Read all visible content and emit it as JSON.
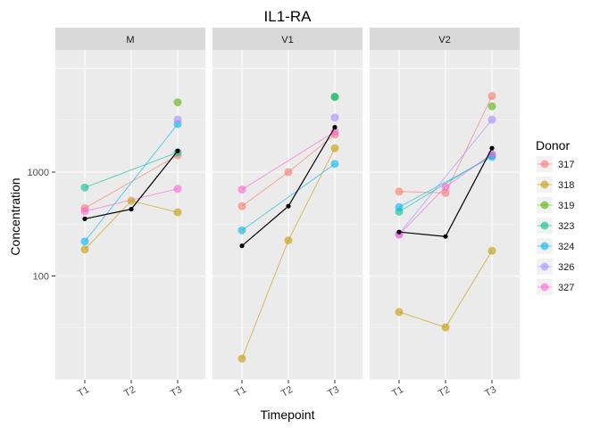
{
  "chart_data": {
    "type": "line",
    "title": "IL1-RA",
    "xlabel": "Timepoint",
    "ylabel": "Concentration",
    "y_scale": "log10",
    "ylim": [
      10,
      15000
    ],
    "y_ticks": [
      {
        "value": 100,
        "label": "100"
      },
      {
        "value": 1000,
        "label": "1000"
      }
    ],
    "categories": [
      "T1",
      "T2",
      "T3"
    ],
    "legend": {
      "title": "Donor",
      "position": "right"
    },
    "panels": [
      {
        "name": "M",
        "series": [
          {
            "name": "317",
            "values": [
              450,
              null,
              1450
            ]
          },
          {
            "name": "318",
            "values": [
              180,
              530,
              410
            ]
          },
          {
            "name": "319",
            "values": [
              null,
              null,
              4700
            ]
          },
          {
            "name": "323",
            "values": [
              710,
              null,
              1550
            ]
          },
          {
            "name": "324",
            "values": [
              215,
              null,
              2900
            ]
          },
          {
            "name": "326",
            "values": [
              null,
              null,
              3200
            ]
          },
          {
            "name": "327",
            "values": [
              420,
              null,
              690
            ]
          }
        ],
        "mean": [
          355,
          440,
          1600
        ]
      },
      {
        "name": "V1",
        "series": [
          {
            "name": "317",
            "values": [
              470,
              1000,
              2300
            ]
          },
          {
            "name": "318",
            "values": [
              16,
              220,
              1700
            ]
          },
          {
            "name": "319",
            "values": [
              null,
              null,
              5300
            ]
          },
          {
            "name": "323",
            "values": [
              null,
              null,
              5300
            ]
          },
          {
            "name": "324",
            "values": [
              275,
              null,
              1200
            ]
          },
          {
            "name": "326",
            "values": [
              null,
              null,
              3350
            ]
          },
          {
            "name": "327",
            "values": [
              680,
              null,
              2450
            ]
          }
        ],
        "mean": [
          195,
          470,
          2700
        ]
      },
      {
        "name": "V2",
        "series": [
          {
            "name": "317",
            "values": [
              650,
              630,
              5400
            ]
          },
          {
            "name": "318",
            "values": [
              45,
              32,
              175
            ]
          },
          {
            "name": "319",
            "values": [
              null,
              null,
              4300
            ]
          },
          {
            "name": "323",
            "values": [
              415,
              null,
              1450
            ]
          },
          {
            "name": "324",
            "values": [
              460,
              null,
              1400
            ]
          },
          {
            "name": "326",
            "values": [
              255,
              null,
              3200
            ]
          },
          {
            "name": "327",
            "values": [
              250,
              720,
              1500
            ]
          }
        ],
        "mean": [
          265,
          240,
          1700
        ]
      }
    ],
    "colors": {
      "317": "#F8766D",
      "318": "#C49A00",
      "319": "#53B400",
      "323": "#00C094",
      "324": "#00B6EB",
      "326": "#A58AFF",
      "327": "#FB61D7",
      "mean": "#000000"
    }
  }
}
